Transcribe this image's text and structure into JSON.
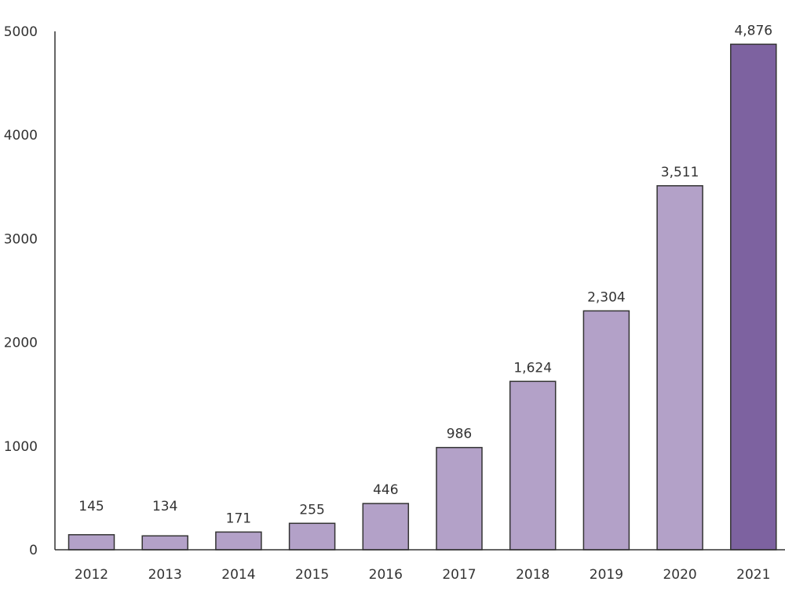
{
  "chart_data": {
    "type": "bar",
    "title": "",
    "xlabel": "",
    "ylabel": "",
    "categories": [
      "2012",
      "2013",
      "2014",
      "2015",
      "2016",
      "2017",
      "2018",
      "2019",
      "2020",
      "2021"
    ],
    "values": [
      145,
      134,
      171,
      255,
      446,
      986,
      1624,
      2304,
      3511,
      4876
    ],
    "data_labels": [
      "145",
      "134",
      "171",
      "255",
      "446",
      "986",
      "1,624",
      "2,304",
      "3,511",
      "4,876"
    ],
    "ylim": [
      0,
      5000
    ],
    "yticks": [
      0,
      1000,
      2000,
      3000,
      4000,
      5000
    ],
    "ytick_labels": [
      "0",
      "1000",
      "2000",
      "3000",
      "4000",
      "5000"
    ],
    "grid": false,
    "colors": {
      "bar": "#b3a1c8",
      "highlight": "#7d62a0",
      "outline": "#333333"
    },
    "highlight_index": 9
  }
}
